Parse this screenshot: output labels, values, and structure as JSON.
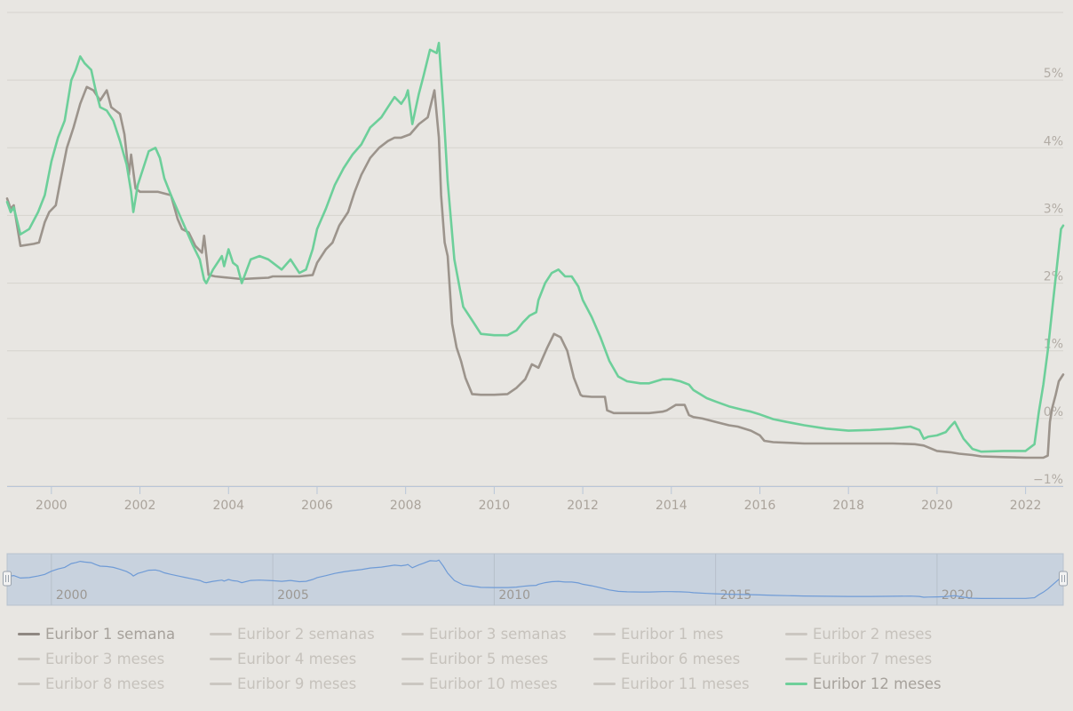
{
  "chart_data": {
    "type": "line",
    "y_ticks": [
      -1,
      0,
      1,
      2,
      3,
      4,
      5
    ],
    "y_tick_labels": [
      "−1%",
      "0%",
      "1%",
      "2%",
      "3%",
      "4%",
      "5%"
    ],
    "ylim": [
      -1,
      6
    ],
    "xlim": [
      1999.0,
      2022.85
    ],
    "x_ticks": [
      2000,
      2002,
      2004,
      2006,
      2008,
      2010,
      2012,
      2014,
      2016,
      2018,
      2020,
      2022
    ],
    "x_tick_labels": [
      "2000",
      "2002",
      "2004",
      "2006",
      "2008",
      "2010",
      "2012",
      "2014",
      "2016",
      "2018",
      "2020",
      "2022"
    ],
    "grid": true,
    "series": [
      {
        "name": "Euribor 1 semana",
        "color": "#9c948c",
        "x": [
          1999.0,
          1999.08,
          1999.15,
          1999.3,
          1999.6,
          1999.72,
          1999.85,
          1999.95,
          2000.1,
          2000.2,
          2000.35,
          2000.5,
          2000.65,
          2000.8,
          2000.95,
          2001.1,
          2001.25,
          2001.35,
          2001.45,
          2001.55,
          2001.65,
          2001.75,
          2001.8,
          2001.9,
          2002.0,
          2002.2,
          2002.4,
          2002.7,
          2002.85,
          2002.95,
          2003.1,
          2003.25,
          2003.4,
          2003.45,
          2003.55,
          2003.7,
          2004.0,
          2004.3,
          2004.6,
          2004.9,
          2005.0,
          2005.3,
          2005.6,
          2005.9,
          2006.0,
          2006.2,
          2006.35,
          2006.5,
          2006.7,
          2006.85,
          2007.0,
          2007.2,
          2007.4,
          2007.6,
          2007.75,
          2007.9,
          2008.1,
          2008.3,
          2008.5,
          2008.65,
          2008.75,
          2008.8,
          2008.88,
          2008.95,
          2009.05,
          2009.15,
          2009.25,
          2009.35,
          2009.5,
          2009.7,
          2009.9,
          2010.0,
          2010.3,
          2010.5,
          2010.7,
          2010.85,
          2011.0,
          2011.1,
          2011.2,
          2011.35,
          2011.5,
          2011.65,
          2011.8,
          2011.95,
          2012.0,
          2012.2,
          2012.5,
          2012.55,
          2012.7,
          2013.0,
          2013.5,
          2013.8,
          2013.9,
          2014.1,
          2014.3,
          2014.4,
          2014.5,
          2014.7,
          2015.0,
          2015.3,
          2015.5,
          2015.8,
          2016.0,
          2016.1,
          2016.3,
          2016.7,
          2017.0,
          2018.0,
          2019.0,
          2019.5,
          2019.7,
          2020.0,
          2020.3,
          2020.5,
          2020.8,
          2021.0,
          2021.5,
          2022.0,
          2022.4,
          2022.5,
          2022.55,
          2022.6,
          2022.68,
          2022.75,
          2022.85
        ],
        "y": [
          3.25,
          3.1,
          3.15,
          2.55,
          2.58,
          2.6,
          2.9,
          3.05,
          3.15,
          3.5,
          4.0,
          4.3,
          4.65,
          4.9,
          4.85,
          4.7,
          4.85,
          4.6,
          4.55,
          4.5,
          4.2,
          3.6,
          3.9,
          3.4,
          3.35,
          3.35,
          3.35,
          3.3,
          2.95,
          2.8,
          2.75,
          2.55,
          2.45,
          2.7,
          2.12,
          2.1,
          2.08,
          2.06,
          2.07,
          2.08,
          2.1,
          2.1,
          2.1,
          2.12,
          2.3,
          2.5,
          2.6,
          2.85,
          3.05,
          3.35,
          3.6,
          3.85,
          4.0,
          4.1,
          4.15,
          4.15,
          4.2,
          4.35,
          4.45,
          4.85,
          4.15,
          3.3,
          2.6,
          2.4,
          1.4,
          1.05,
          0.85,
          0.6,
          0.36,
          0.35,
          0.35,
          0.35,
          0.36,
          0.45,
          0.58,
          0.8,
          0.75,
          0.9,
          1.05,
          1.25,
          1.2,
          1.0,
          0.6,
          0.35,
          0.33,
          0.32,
          0.32,
          0.12,
          0.08,
          0.08,
          0.08,
          0.1,
          0.12,
          0.2,
          0.2,
          0.05,
          0.02,
          0.0,
          -0.05,
          -0.1,
          -0.12,
          -0.18,
          -0.25,
          -0.33,
          -0.35,
          -0.36,
          -0.37,
          -0.37,
          -0.37,
          -0.38,
          -0.4,
          -0.48,
          -0.5,
          -0.52,
          -0.54,
          -0.56,
          -0.57,
          -0.58,
          -0.58,
          -0.55,
          -0.05,
          0.15,
          0.35,
          0.55,
          0.65
        ],
        "width": 2.6,
        "opacity": 1
      },
      {
        "name": "Euribor 12 meses",
        "color": "#6dcf9a",
        "x": [
          1999.0,
          1999.08,
          1999.15,
          1999.3,
          1999.5,
          1999.7,
          1999.85,
          2000.0,
          2000.15,
          2000.3,
          2000.45,
          2000.55,
          2000.65,
          2000.75,
          2000.9,
          2001.0,
          2001.1,
          2001.25,
          2001.4,
          2001.55,
          2001.7,
          2001.8,
          2001.85,
          2001.95,
          2002.05,
          2002.2,
          2002.35,
          2002.45,
          2002.55,
          2002.7,
          2002.9,
          2003.0,
          2003.2,
          2003.35,
          2003.45,
          2003.5,
          2003.65,
          2003.85,
          2003.9,
          2004.0,
          2004.1,
          2004.2,
          2004.3,
          2004.5,
          2004.7,
          2004.9,
          2005.0,
          2005.2,
          2005.4,
          2005.6,
          2005.75,
          2005.9,
          2006.0,
          2006.2,
          2006.4,
          2006.6,
          2006.8,
          2007.0,
          2007.2,
          2007.45,
          2007.6,
          2007.75,
          2007.9,
          2008.0,
          2008.05,
          2008.15,
          2008.3,
          2008.4,
          2008.55,
          2008.7,
          2008.75,
          2008.85,
          2008.95,
          2009.1,
          2009.3,
          2009.5,
          2009.7,
          2010.0,
          2010.3,
          2010.5,
          2010.65,
          2010.8,
          2010.95,
          2011.0,
          2011.15,
          2011.3,
          2011.45,
          2011.6,
          2011.75,
          2011.9,
          2012.0,
          2012.2,
          2012.4,
          2012.6,
          2012.8,
          2013.0,
          2013.3,
          2013.5,
          2013.8,
          2014.0,
          2014.2,
          2014.4,
          2014.5,
          2014.8,
          2015.0,
          2015.3,
          2015.6,
          2015.8,
          2016.0,
          2016.3,
          2016.6,
          2017.0,
          2017.5,
          2018.0,
          2018.5,
          2019.0,
          2019.4,
          2019.6,
          2019.7,
          2019.8,
          2020.0,
          2020.2,
          2020.3,
          2020.4,
          2020.6,
          2020.8,
          2021.0,
          2021.5,
          2021.8,
          2022.0,
          2022.2,
          2022.3,
          2022.4,
          2022.5,
          2022.6,
          2022.7,
          2022.8,
          2022.85
        ],
        "y": [
          3.2,
          3.05,
          3.12,
          2.72,
          2.8,
          3.05,
          3.3,
          3.8,
          4.15,
          4.4,
          5.0,
          5.15,
          5.35,
          5.25,
          5.15,
          4.85,
          4.6,
          4.55,
          4.4,
          4.1,
          3.75,
          3.35,
          3.05,
          3.45,
          3.65,
          3.95,
          4.0,
          3.85,
          3.55,
          3.3,
          3.0,
          2.85,
          2.55,
          2.35,
          2.05,
          2.0,
          2.2,
          2.4,
          2.25,
          2.5,
          2.3,
          2.25,
          2.0,
          2.35,
          2.4,
          2.35,
          2.3,
          2.2,
          2.35,
          2.15,
          2.2,
          2.5,
          2.8,
          3.1,
          3.45,
          3.7,
          3.9,
          4.05,
          4.3,
          4.45,
          4.6,
          4.75,
          4.65,
          4.75,
          4.85,
          4.35,
          4.8,
          5.05,
          5.45,
          5.4,
          5.55,
          4.6,
          3.5,
          2.35,
          1.65,
          1.45,
          1.25,
          1.23,
          1.23,
          1.3,
          1.42,
          1.52,
          1.57,
          1.75,
          2.0,
          2.15,
          2.2,
          2.1,
          2.1,
          1.95,
          1.75,
          1.5,
          1.2,
          0.85,
          0.62,
          0.55,
          0.52,
          0.52,
          0.58,
          0.58,
          0.55,
          0.5,
          0.42,
          0.3,
          0.25,
          0.18,
          0.13,
          0.1,
          0.06,
          -0.01,
          -0.05,
          -0.1,
          -0.15,
          -0.18,
          -0.17,
          -0.15,
          -0.12,
          -0.17,
          -0.3,
          -0.27,
          -0.25,
          -0.2,
          -0.12,
          -0.05,
          -0.3,
          -0.45,
          -0.49,
          -0.48,
          -0.48,
          -0.48,
          -0.38,
          0.1,
          0.5,
          1.0,
          1.6,
          2.2,
          2.8,
          2.85
        ],
        "width": 2.6,
        "opacity": 1
      }
    ],
    "navigator": {
      "x_ticks": [
        2000,
        2005,
        2010,
        2015,
        2020
      ],
      "x_tick_labels": [
        "2000",
        "2005",
        "2010",
        "2015",
        "2020"
      ],
      "line_color": "#6f9bd6",
      "fill_color": "#c8d2de"
    },
    "legend": {
      "placement": "bottom",
      "items": [
        {
          "label": "Euribor 1 semana",
          "active": true,
          "color": "#8f8882"
        },
        {
          "label": "Euribor 2 semanas",
          "active": false
        },
        {
          "label": "Euribor 3 semanas",
          "active": false
        },
        {
          "label": "Euribor 1 mes",
          "active": false
        },
        {
          "label": "Euribor 2 meses",
          "active": false
        },
        {
          "label": "Euribor 3 meses",
          "active": false
        },
        {
          "label": "Euribor 4 meses",
          "active": false
        },
        {
          "label": "Euribor 5 meses",
          "active": false
        },
        {
          "label": "Euribor 6 meses",
          "active": false
        },
        {
          "label": "Euribor 7 meses",
          "active": false
        },
        {
          "label": "Euribor 8 meses",
          "active": false
        },
        {
          "label": "Euribor 9 meses",
          "active": false
        },
        {
          "label": "Euribor 10 meses",
          "active": false
        },
        {
          "label": "Euribor 11 meses",
          "active": false
        },
        {
          "label": "Euribor 12 meses",
          "active": true,
          "color": "#6fcf9a"
        }
      ]
    }
  }
}
